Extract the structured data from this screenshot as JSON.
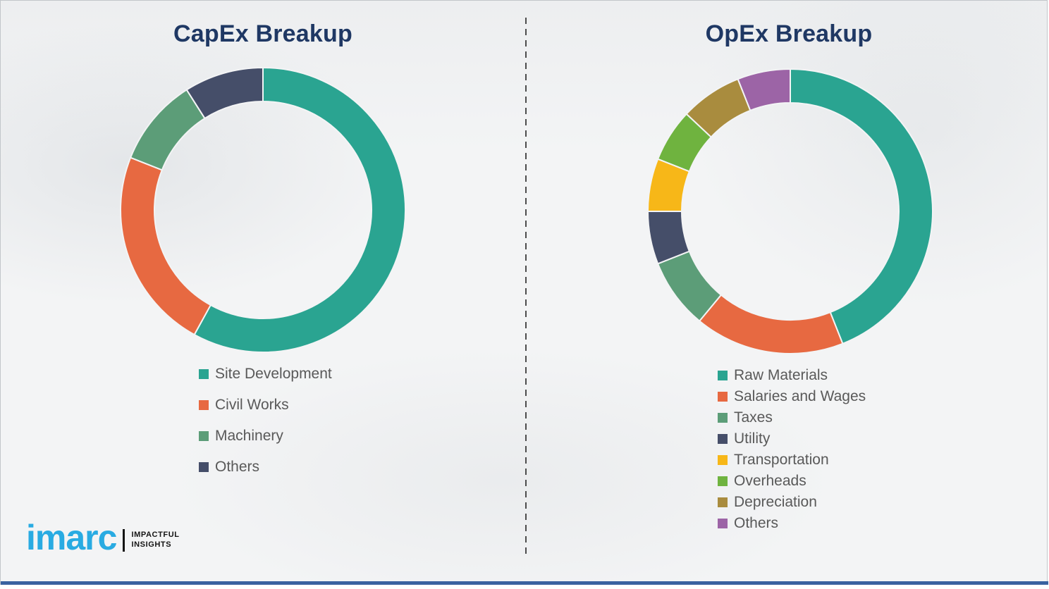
{
  "page": {
    "background_color": "#f3f4f5",
    "border_color": "#c2c6ca",
    "bottom_bar_color": "#3a62a0",
    "divider_color": "#4c4c4c"
  },
  "chart_data": [
    {
      "type": "pie",
      "subtype": "donut",
      "title": "CapEx Breakup",
      "title_color": "#1f3864",
      "legend_position": "below-left",
      "start_angle_deg": 0,
      "direction": "clockwise",
      "units": "percent-of-total (estimated from arc angles; no data labels shown)",
      "categories": [
        "Site Development",
        "Civil Works",
        "Machinery",
        "Others"
      ],
      "values": [
        58,
        23,
        10,
        9
      ],
      "colors": [
        "#2aa491",
        "#e76941",
        "#5c9d78",
        "#454e69"
      ]
    },
    {
      "type": "pie",
      "subtype": "donut",
      "title": "OpEx Breakup",
      "title_color": "#1f3864",
      "legend_position": "below-left",
      "start_angle_deg": 0,
      "direction": "clockwise",
      "units": "percent-of-total (estimated from arc angles; no data labels shown)",
      "categories": [
        "Raw Materials",
        "Salaries and Wages",
        "Taxes",
        "Utility",
        "Transportation",
        "Overheads",
        "Depreciation",
        "Others"
      ],
      "values": [
        44,
        17,
        8,
        6,
        6,
        6,
        7,
        6
      ],
      "colors": [
        "#2aa491",
        "#e76941",
        "#5c9d78",
        "#454e69",
        "#f7b718",
        "#6fb33f",
        "#a98c3e",
        "#9c64a6"
      ]
    }
  ],
  "legend_text_color": "#595959",
  "logo": {
    "brand": "imarc",
    "brand_color": "#29abe2",
    "tagline": [
      "IMPACTFUL",
      "INSIGHTS"
    ],
    "tagline_color": "#141414"
  }
}
